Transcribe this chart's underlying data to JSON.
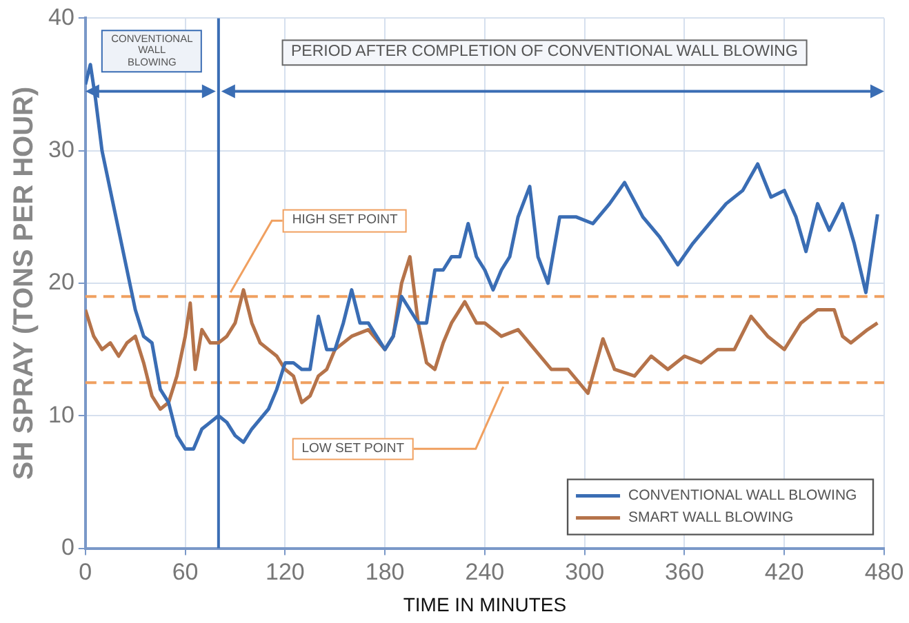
{
  "chart_data": {
    "type": "line",
    "xlabel": "TIME IN MINUTES",
    "ylabel": "SH SPRAY (TONS PER HOUR)",
    "xlim": [
      0,
      480
    ],
    "xticks": [
      0,
      60,
      120,
      180,
      240,
      300,
      360,
      420,
      480
    ],
    "ylim": [
      0,
      40
    ],
    "yticks": [
      0,
      10,
      20,
      30,
      40
    ],
    "grid": true,
    "legend": "bottom right",
    "marker": "none",
    "line_style": "solid",
    "series": [
      {
        "name": "CONVENTIONAL WALL BLOWING",
        "color": "#3a6db4",
        "x": [
          0,
          3,
          6,
          10,
          15,
          20,
          25,
          30,
          35,
          40,
          45,
          50,
          55,
          60,
          65,
          70,
          75,
          80,
          85,
          90,
          95,
          100,
          110,
          115,
          120,
          125,
          130,
          135,
          140,
          145,
          150,
          155,
          160,
          165,
          170,
          175,
          180,
          185,
          190,
          195,
          200,
          205,
          210,
          215,
          220,
          225,
          230,
          235,
          240,
          245,
          250,
          255,
          260,
          267,
          272,
          278,
          285,
          295,
          305,
          315,
          324,
          335,
          345,
          356,
          365,
          375,
          385,
          395,
          404,
          412,
          420,
          427,
          433,
          440,
          447,
          455,
          462,
          469,
          476
        ],
        "values": [
          35,
          36.5,
          34,
          30,
          27,
          24,
          21,
          18,
          16,
          15.5,
          12,
          11,
          8.5,
          7.5,
          7.5,
          9,
          9.5,
          10,
          9.5,
          8.5,
          8,
          9,
          10.5,
          12,
          14,
          14,
          13.5,
          13.5,
          17.5,
          15,
          15,
          17,
          19.5,
          17,
          17,
          16,
          15,
          16,
          19,
          18,
          17,
          17,
          21,
          21,
          22,
          22,
          24.5,
          22,
          21,
          19.5,
          21,
          22,
          25,
          27.3,
          22,
          20,
          25,
          25,
          24.5,
          26,
          27.6,
          25,
          23.5,
          21.4,
          23,
          24.5,
          26,
          27,
          29,
          26.5,
          27,
          25,
          22.4,
          26,
          24,
          26,
          23,
          19.3,
          25.2
        ]
      },
      {
        "name": "SMART WALL BLOWING",
        "color": "#b5734a",
        "x": [
          0,
          5,
          10,
          15,
          20,
          25,
          30,
          35,
          40,
          45,
          50,
          55,
          60,
          63,
          66,
          70,
          75,
          80,
          85,
          90,
          95,
          100,
          105,
          110,
          115,
          120,
          125,
          130,
          135,
          140,
          145,
          150,
          160,
          170,
          180,
          185,
          190,
          195,
          200,
          205,
          210,
          215,
          220,
          228,
          235,
          240,
          250,
          260,
          270,
          280,
          290,
          302,
          311,
          318,
          330,
          340,
          350,
          360,
          370,
          380,
          390,
          400,
          410,
          420,
          430,
          440,
          450,
          455,
          460,
          470,
          476
        ],
        "values": [
          18,
          16,
          15,
          15.5,
          14.5,
          15.5,
          16,
          14,
          11.5,
          10.5,
          11,
          13,
          16,
          18.5,
          13.5,
          16.5,
          15.5,
          15.5,
          16,
          17,
          19.5,
          17,
          15.5,
          15,
          14.5,
          13.5,
          13,
          11,
          11.5,
          13,
          13.5,
          15,
          16,
          16.5,
          15,
          16,
          20,
          22,
          17,
          14,
          13.5,
          15.5,
          17,
          18.6,
          17,
          17,
          16,
          16.5,
          15,
          13.5,
          13.5,
          11.7,
          15.8,
          13.5,
          13,
          14.5,
          13.5,
          14.5,
          14,
          15,
          15,
          17.5,
          16,
          15,
          17,
          18,
          18,
          16,
          15.5,
          16.5,
          17
        ]
      }
    ],
    "ref_lines": [
      {
        "axis": "y",
        "value": 19,
        "label": "HIGH SET POINT",
        "color": "#f0a060",
        "line_style": "dashed"
      },
      {
        "axis": "y",
        "value": 12.5,
        "label": "LOW SET POINT",
        "color": "#f0a060",
        "line_style": "dashed"
      },
      {
        "axis": "x",
        "value": 80,
        "color": "#3a6db4",
        "line_style": "solid"
      }
    ],
    "annotations": [
      "CONVENTIONAL WALL BLOWING",
      "PERIOD AFTER COMPLETION OF CONVENTIONAL WALL BLOWING"
    ]
  }
}
